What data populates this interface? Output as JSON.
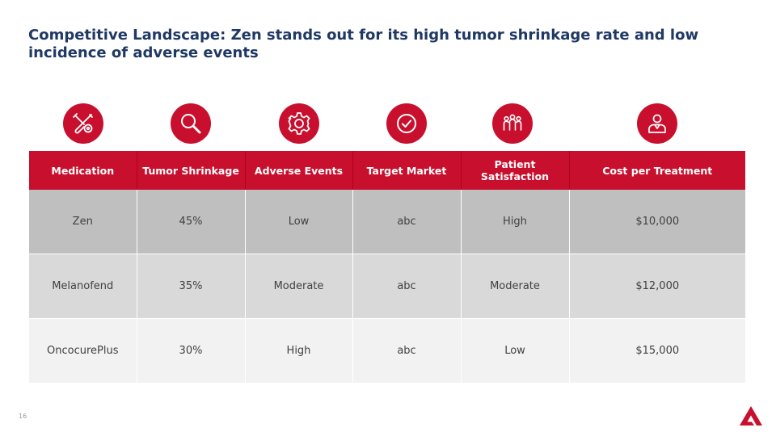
{
  "slide": {
    "title": "Competitive Landscape: Zen stands out for its high tumor shrinkage rate and low incidence of adverse events",
    "page_number": "16",
    "accent_color": "#c8102e",
    "title_color": "#1f3864"
  },
  "icons": [
    "tools-icon",
    "magnifier-icon",
    "gear-icon",
    "checkmark-icon",
    "people-group-icon",
    "doctor-icon"
  ],
  "table": {
    "headers": [
      "Medication",
      "Tumor Shrinkage",
      "Adverse Events",
      "Target Market",
      "Patient Satisfaction",
      "Cost per Treatment"
    ],
    "rows": [
      [
        "Zen",
        "45%",
        "Low",
        "abc",
        "High",
        "$10,000"
      ],
      [
        "Melanofend",
        "35%",
        "Moderate",
        "abc",
        "Moderate",
        "$12,000"
      ],
      [
        "OncocurePlus",
        "30%",
        "High",
        "abc",
        "Low",
        "$15,000"
      ]
    ]
  }
}
